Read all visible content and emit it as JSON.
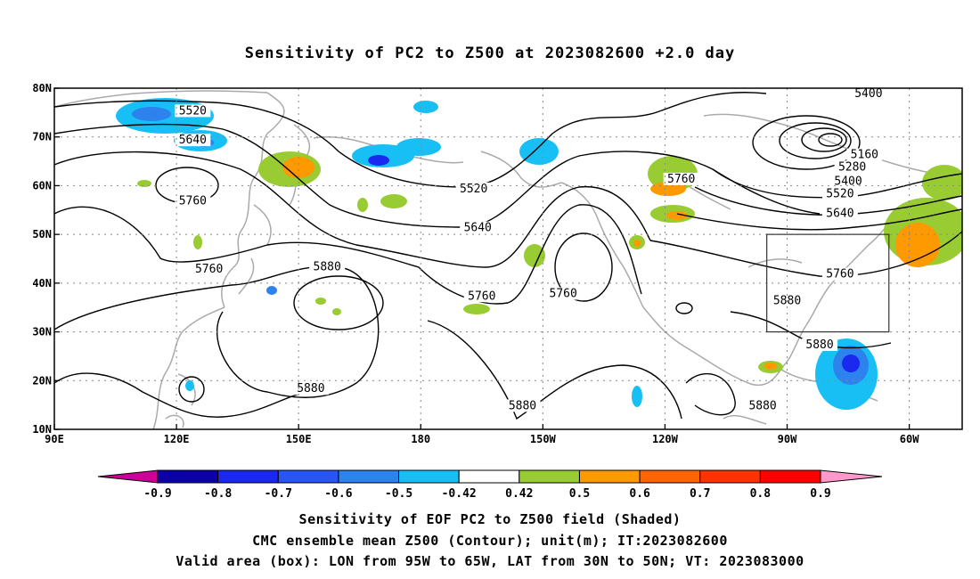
{
  "title": "Sensitivity of PC2 to Z500 at 2023082600 +2.0 day",
  "map": {
    "lon_labels": [
      "90E",
      "120E",
      "150E",
      "180",
      "150W",
      "120W",
      "90W",
      "60W"
    ],
    "lon_values": [
      90,
      120,
      150,
      180,
      210,
      240,
      270,
      300
    ],
    "lat_labels": [
      "10N",
      "20N",
      "30N",
      "40N",
      "50N",
      "60N",
      "70N",
      "80N"
    ],
    "lat_values": [
      10,
      20,
      30,
      40,
      50,
      60,
      70,
      80
    ],
    "lon_range": [
      90,
      313
    ],
    "lat_range": [
      10,
      80
    ],
    "grid": true,
    "valid_box": {
      "lon": [
        265,
        295
      ],
      "lat": [
        30,
        50
      ]
    },
    "contour_labels": [
      {
        "text": "5520",
        "lon": 124,
        "lat": 75
      },
      {
        "text": "5640",
        "lon": 124,
        "lat": 69
      },
      {
        "text": "5760",
        "lon": 124,
        "lat": 56.5
      },
      {
        "text": "5760",
        "lon": 128,
        "lat": 42.5
      },
      {
        "text": "5880",
        "lon": 157,
        "lat": 43
      },
      {
        "text": "5880",
        "lon": 153,
        "lat": 18
      },
      {
        "text": "5520",
        "lon": 193,
        "lat": 59
      },
      {
        "text": "5640",
        "lon": 194,
        "lat": 51
      },
      {
        "text": "5760",
        "lon": 195,
        "lat": 37
      },
      {
        "text": "5760",
        "lon": 215,
        "lat": 37.5
      },
      {
        "text": "5880",
        "lon": 205,
        "lat": 14.5
      },
      {
        "text": "5760",
        "lon": 244,
        "lat": 61
      },
      {
        "text": "5400",
        "lon": 290,
        "lat": 78.5
      },
      {
        "text": "5160",
        "lon": 289,
        "lat": 66
      },
      {
        "text": "5280",
        "lon": 286,
        "lat": 63.5
      },
      {
        "text": "5400",
        "lon": 285,
        "lat": 60.5
      },
      {
        "text": "5520",
        "lon": 283,
        "lat": 58
      },
      {
        "text": "5640",
        "lon": 283,
        "lat": 54
      },
      {
        "text": "5760",
        "lon": 283,
        "lat": 41.5
      },
      {
        "text": "5880",
        "lon": 270,
        "lat": 36
      },
      {
        "text": "5880",
        "lon": 278,
        "lat": 27
      },
      {
        "text": "5880",
        "lon": 264,
        "lat": 14.5
      }
    ]
  },
  "colorbar": {
    "labels": [
      "-0.9",
      "-0.8",
      "-0.7",
      "-0.6",
      "-0.5",
      "-0.42",
      "0.42",
      "0.5",
      "0.6",
      "0.7",
      "0.8",
      "0.9"
    ],
    "colors": [
      "#0c00a8",
      "#1a28f0",
      "#2a55f5",
      "#2d82ee",
      "#18bff5",
      "#ffffff",
      "#99cc33",
      "#ff9900",
      "#ff6600",
      "#ff3300",
      "#ff0000"
    ],
    "under_color": "#cc0099",
    "over_color": "#ff99cc"
  },
  "captions": {
    "line1": "Sensitivity of EOF PC2 to Z500 field (Shaded)",
    "line2": "CMC ensemble mean Z500 (Contour); unit(m); IT:2023082600",
    "line3": "Valid area (box): LON from 95W to 65W, LAT from 30N to 50N; VT: 2023083000"
  }
}
